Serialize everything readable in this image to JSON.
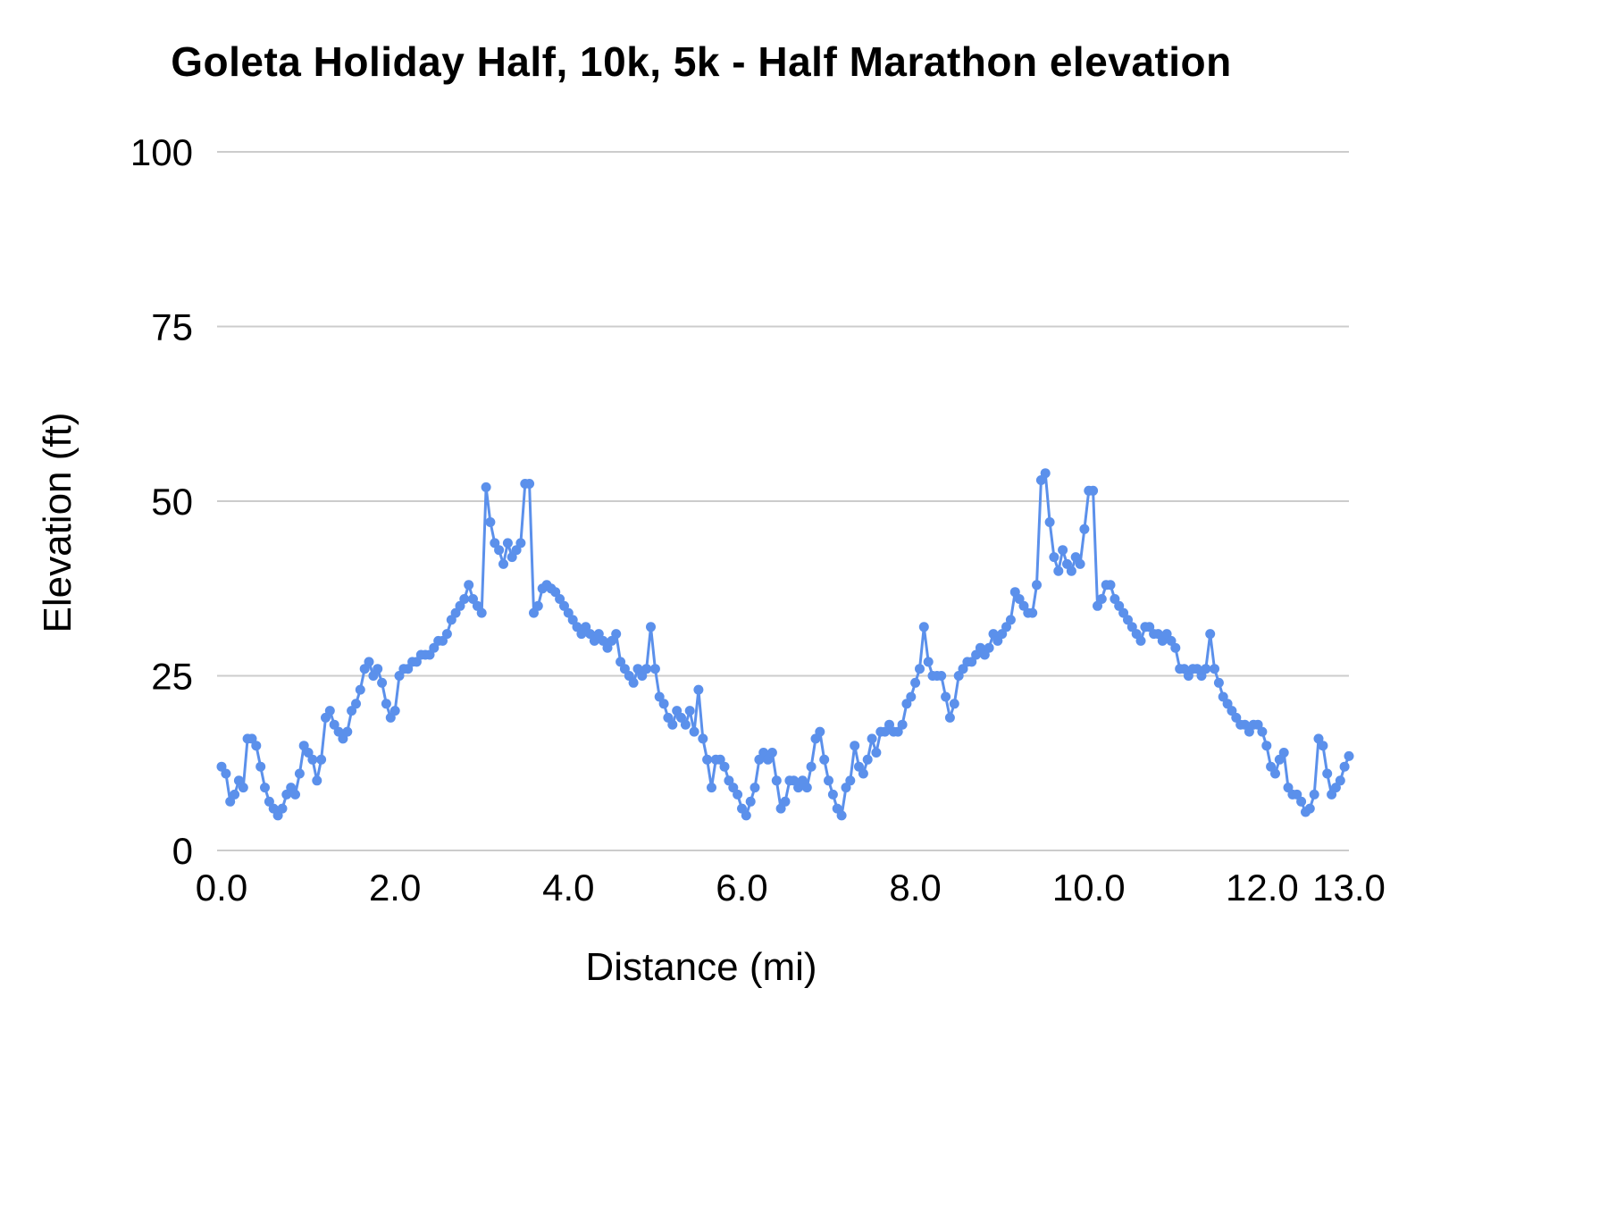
{
  "page": {
    "background_color": "#ffffff",
    "text_color": "#000000",
    "gridline_color": "#cccccc"
  },
  "chart_data": {
    "type": "line",
    "title": "Goleta Holiday Half, 10k, 5k - Half Marathon elevation",
    "xlabel": "Distance (mi)",
    "ylabel": "Elevation (ft)",
    "xlim": [
      0,
      13
    ],
    "ylim": [
      0,
      100
    ],
    "x_ticks": [
      0,
      2,
      4,
      6,
      8,
      10,
      12,
      13
    ],
    "x_tick_labels": [
      "0.0",
      "2.0",
      "4.0",
      "6.0",
      "8.0",
      "10.0",
      "12.0",
      "13.0"
    ],
    "y_ticks": [
      0,
      25,
      50,
      75,
      100
    ],
    "y_tick_labels": [
      "0",
      "25",
      "50",
      "75",
      "100"
    ],
    "grid": "horizontal-only",
    "legend": "none",
    "line_color": "#5b90eb",
    "marker": "circle",
    "x_start": 0,
    "x_step": 0.05,
    "y": [
      12,
      11,
      7,
      8,
      10,
      9,
      16,
      16,
      15,
      12,
      9,
      7,
      6,
      5,
      6,
      8,
      9,
      8,
      11,
      15,
      14,
      13,
      10,
      13,
      19,
      20,
      18,
      17,
      16,
      17,
      20,
      21,
      23,
      26,
      27,
      25,
      26,
      24,
      21,
      19,
      20,
      25,
      26,
      26,
      27,
      27,
      28,
      28,
      28,
      29,
      30,
      30,
      31,
      33,
      34,
      35,
      36,
      38,
      36,
      35,
      34,
      52,
      47,
      44,
      43,
      41,
      44,
      42,
      43,
      44,
      52.5,
      52.5,
      34,
      35,
      37.5,
      38,
      37.5,
      37,
      36,
      35,
      34,
      33,
      32,
      31,
      32,
      31,
      30,
      31,
      30,
      29,
      30,
      31,
      27,
      26,
      25,
      24,
      26,
      25,
      26,
      32,
      26,
      22,
      21,
      19,
      18,
      20,
      19,
      18,
      20,
      17,
      23,
      16,
      13,
      9,
      13,
      13,
      12,
      10,
      9,
      8,
      6,
      5,
      7,
      9,
      13,
      14,
      13,
      14,
      10,
      6,
      7,
      10,
      10,
      9,
      10,
      9,
      12,
      16,
      17,
      13,
      10,
      8,
      6,
      5,
      9,
      10,
      15,
      12,
      11,
      13,
      16,
      14,
      17,
      17,
      18,
      17,
      17,
      18,
      21,
      22,
      24,
      26,
      32,
      27,
      25,
      25,
      25,
      22,
      19,
      21,
      25,
      26,
      27,
      27,
      28,
      29,
      28,
      29,
      31,
      30,
      31,
      32,
      33,
      37,
      36,
      35,
      34,
      34,
      38,
      53,
      54,
      47,
      42,
      40,
      43,
      41,
      40,
      42,
      41,
      46,
      51.5,
      51.5,
      35,
      36,
      38,
      38,
      36,
      35,
      34,
      33,
      32,
      31,
      30,
      32,
      32,
      31,
      31,
      30,
      31,
      30,
      29,
      26,
      26,
      25,
      26,
      26,
      25,
      26,
      31,
      26,
      24,
      22,
      21,
      20,
      19,
      18,
      18,
      17,
      18,
      18,
      17,
      15,
      12,
      11,
      13,
      14,
      9,
      8,
      8,
      7,
      5.5,
      6,
      8,
      16,
      15,
      11,
      8,
      9,
      10,
      12,
      13.5
    ]
  }
}
